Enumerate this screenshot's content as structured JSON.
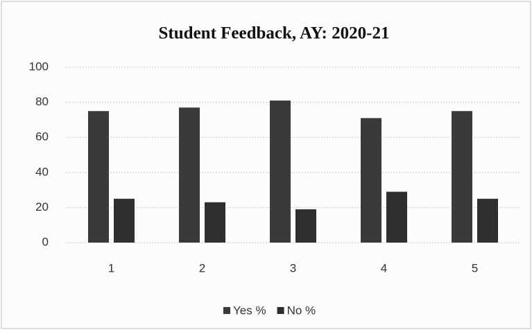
{
  "chart_data": {
    "type": "bar",
    "title": "Student Feedback, AY: 2020-21",
    "categories": [
      "1",
      "2",
      "3",
      "4",
      "5"
    ],
    "series": [
      {
        "name": "Yes %",
        "color": "#3a3a3a",
        "values": [
          75,
          77,
          81,
          71,
          75
        ]
      },
      {
        "name": "No %",
        "color": "#2f2f2f",
        "values": [
          25,
          23,
          19,
          29,
          25
        ]
      }
    ],
    "ylim": [
      0,
      100
    ],
    "yticks": [
      0,
      20,
      40,
      60,
      80,
      100
    ],
    "grid": true,
    "legend": "bottom"
  }
}
